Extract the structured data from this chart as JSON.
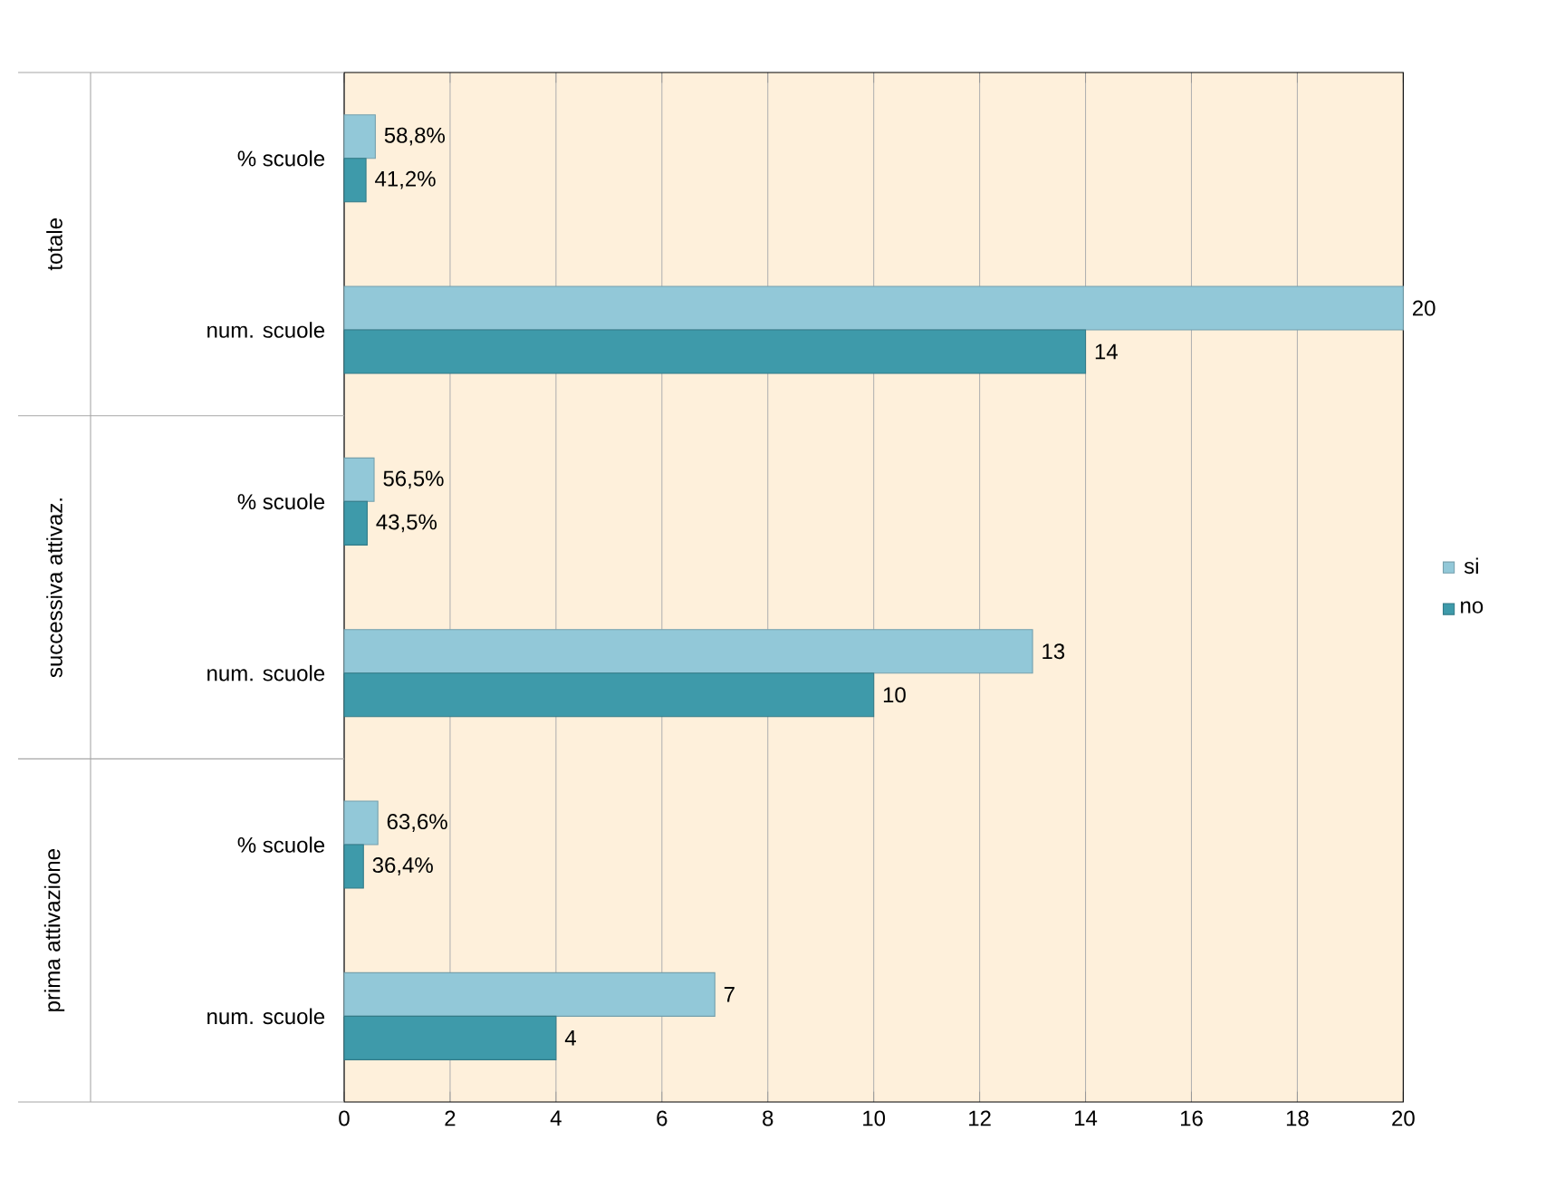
{
  "chart_data": {
    "type": "bar",
    "orientation": "horizontal",
    "categories": [
      "% scuole",
      "num. scuole",
      "% scuole",
      "num. scuole",
      "% scuole",
      "num. scuole"
    ],
    "series": [
      {
        "name": "si",
        "color": "#92c8d8",
        "values": [
          0.588,
          20,
          0.565,
          13,
          0.636,
          7
        ],
        "value_labels": [
          "58,8%",
          "20",
          "56,5%",
          "13",
          "63,6%",
          "7"
        ]
      },
      {
        "name": "no",
        "color": "#3e9aaa",
        "values": [
          0.412,
          14,
          0.435,
          10,
          0.364,
          4
        ],
        "value_labels": [
          "41,2%",
          "14",
          "43,5%",
          "10",
          "36,4%",
          "4"
        ]
      }
    ],
    "annotations": [
      "totale",
      "successiva attivaz.",
      "prima attivazione"
    ],
    "xlim": [
      0,
      20
    ],
    "xticks": [
      0,
      2,
      4,
      6,
      8,
      10,
      12,
      14,
      16,
      18,
      20
    ],
    "grid": "x",
    "legend": "right"
  }
}
